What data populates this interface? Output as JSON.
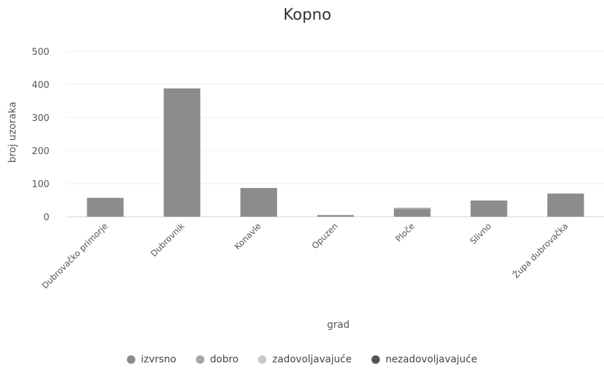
{
  "chart_data": {
    "type": "bar",
    "title": "Kopno",
    "xlabel": "grad",
    "ylabel": "broj uzoraka",
    "ylim": [
      0,
      500
    ],
    "yticks": [
      0,
      100,
      200,
      300,
      400,
      500
    ],
    "categories": [
      "Dubrovačko primorje",
      "Dubrovnik",
      "Konavle",
      "Opuzen",
      "Ploče",
      "Slivno",
      "Župa dubrovačka"
    ],
    "series": [
      {
        "name": "izvrsno",
        "color": "#8c8c8c",
        "values": [
          57,
          388,
          87,
          5,
          23,
          49,
          70
        ]
      },
      {
        "name": "dobro",
        "color": "#a6a6a6",
        "values": [
          0,
          0,
          0,
          0,
          4,
          0,
          0
        ]
      },
      {
        "name": "zadovoljavajuće",
        "color": "#c8c8c8",
        "values": [
          0,
          0,
          0,
          0,
          0,
          0,
          0
        ]
      },
      {
        "name": "nezadovoljavajuće",
        "color": "#555555",
        "values": [
          0,
          0,
          0,
          0,
          0,
          0,
          0
        ]
      }
    ],
    "grid": true,
    "legend_position": "bottom"
  }
}
